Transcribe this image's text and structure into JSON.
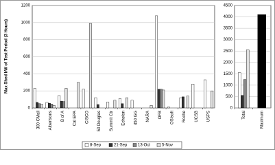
{
  "chart_data": [
    {
      "type": "bar",
      "y_label": "Max Shed kW of Test Period (3 Hours)",
      "categories": [
        "300 CMall",
        "Albertsons",
        "B of A",
        "Cal EPA",
        "CISCO",
        "50 Douglas",
        "Summit Ctr",
        "Echelon",
        "450 GG",
        "NARA",
        "OFB",
        "OSIsoft",
        "Roche",
        "UCSB",
        "USPS"
      ],
      "series": [
        {
          "name": "8-Sep",
          "color": "#ffffff",
          "values": [
            230,
            65,
            145,
            null,
            220,
            120,
            70,
            110,
            90,
            null,
            1080,
            10,
            120,
            280,
            330
          ]
        },
        {
          "name": "21-Sep",
          "color": "#333333",
          "values": [
            65,
            55,
            80,
            null,
            null,
            40,
            null,
            50,
            null,
            null,
            220,
            null,
            130,
            null,
            null
          ]
        },
        {
          "name": "13-Oct",
          "color": "#888888",
          "values": [
            50,
            45,
            75,
            null,
            null,
            null,
            null,
            null,
            null,
            null,
            220,
            null,
            null,
            null,
            null
          ]
        },
        {
          "name": "5-Nov",
          "color": "#e0e0e0",
          "values": [
            45,
            30,
            230,
            300,
            990,
            null,
            90,
            120,
            null,
            30,
            210,
            null,
            140,
            null,
            200
          ]
        }
      ],
      "ylim": [
        0,
        1200
      ],
      "yticks": [
        0,
        200,
        400,
        600,
        800,
        1000,
        1200
      ],
      "grid": true,
      "legend": "bottom"
    },
    {
      "type": "bar",
      "categories": [
        "Total",
        "Maximum"
      ],
      "series": [
        {
          "color": "#ffffff",
          "values": [
            1550,
            null
          ]
        },
        {
          "color": "#333333",
          "values": [
            550,
            null
          ]
        },
        {
          "color": "#888888",
          "values": [
            1250,
            null
          ]
        },
        {
          "color": "#e0e0e0",
          "values": [
            2550,
            null
          ]
        }
      ],
      "values": [
        null,
        4100
      ],
      "color": "#000000",
      "ylim": [
        0,
        4500
      ],
      "yticks": [
        0,
        500,
        1000,
        1500,
        2000,
        2500,
        3000,
        3500,
        4000,
        4500
      ],
      "grid": true
    }
  ]
}
